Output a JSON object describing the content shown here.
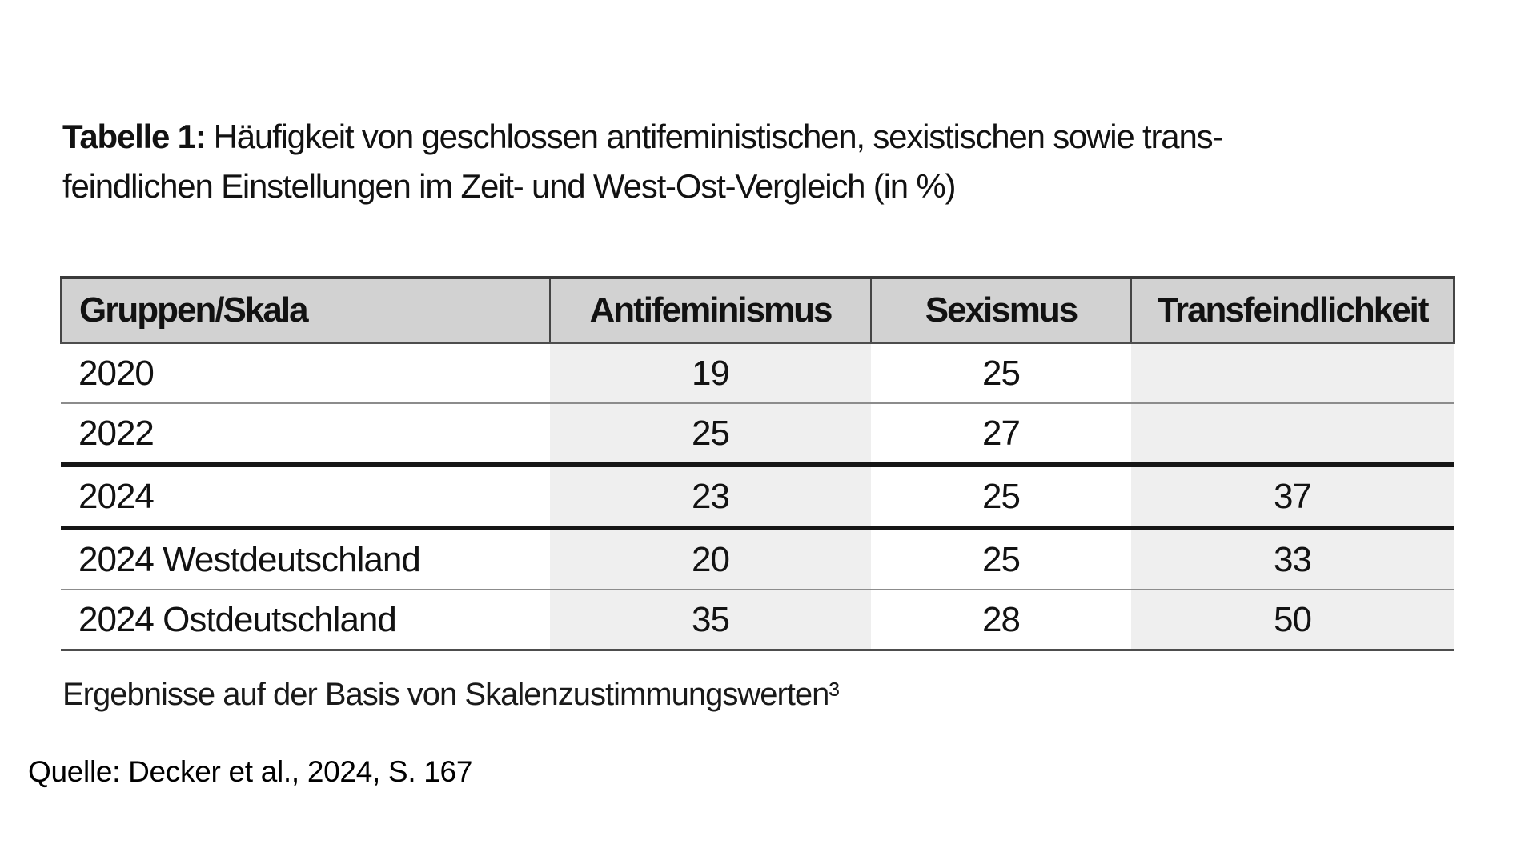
{
  "page": {
    "background": "#ffffff"
  },
  "caption": {
    "label": "Tabelle 1:",
    "line1": "Häufigkeit von geschlossen antifeministischen, sexistischen sowie trans-",
    "line2": "feindlichen Einstellungen im Zeit- und West-Ost-Vergleich (in %)"
  },
  "table": {
    "columns": [
      "Gruppen/Skala",
      "Antifeminismus",
      "Sexismus",
      "Transfeindlichkeit"
    ],
    "rows": [
      {
        "cells": [
          "2020",
          "19",
          "25",
          ""
        ]
      },
      {
        "cells": [
          "2022",
          "25",
          "27",
          ""
        ]
      },
      {
        "cells": [
          "2024",
          "23",
          "25",
          "37"
        ]
      },
      {
        "cells": [
          "2024 Westdeutschland",
          "20",
          "25",
          "33"
        ]
      },
      {
        "cells": [
          "2024 Ostdeutschland",
          "35",
          "28",
          "50"
        ]
      }
    ]
  },
  "footnote": "Ergebnisse auf der Basis von Skalenzustimmungswerten³",
  "source": "Quelle: Decker et al., 2024, S. 167",
  "colors": {
    "header_bg": "#d2d2d2",
    "shaded_column_bg": "#efefef",
    "thick_rule": "#161616",
    "thin_rule": "#8c8c8c",
    "frame_rule": "#454545",
    "text": "#121212"
  }
}
